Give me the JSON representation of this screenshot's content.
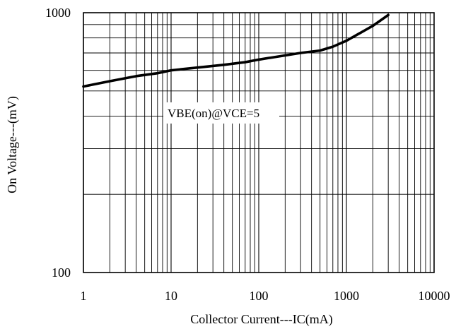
{
  "chart_data": {
    "type": "line",
    "x_scale": "log",
    "y_scale": "log",
    "xlim": [
      1,
      10000
    ],
    "ylim": [
      100,
      1000
    ],
    "grid": true,
    "xlabel": "Collector Current---IC(mA)",
    "ylabel": "On Voltage---(mV)",
    "x_ticks": [
      1,
      10,
      100,
      1000,
      10000
    ],
    "x_tick_labels": [
      "1",
      "10",
      "100",
      "1000",
      "10000"
    ],
    "y_ticks": [
      100,
      1000
    ],
    "y_tick_labels": [
      "100",
      "1000"
    ],
    "annotation": "VBE(on)@VCE=5",
    "series": [
      {
        "name": "VBE(on)@VCE=5",
        "x": [
          1,
          2,
          4,
          7,
          10,
          20,
          40,
          70,
          100,
          200,
          300,
          500,
          700,
          1000,
          2000,
          3000
        ],
        "y": [
          520,
          545,
          570,
          585,
          600,
          615,
          630,
          645,
          660,
          685,
          700,
          715,
          740,
          780,
          890,
          980
        ]
      }
    ],
    "colors": {
      "line": "#000000",
      "grid": "#000000",
      "background": "#ffffff"
    }
  }
}
